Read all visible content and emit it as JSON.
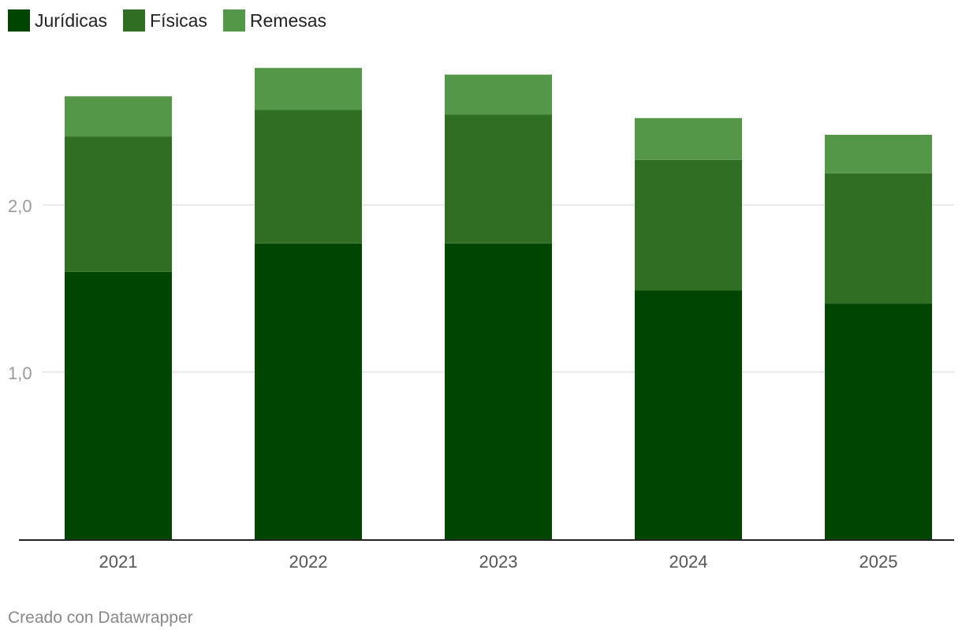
{
  "chart_data": {
    "type": "bar",
    "stacked": true,
    "categories": [
      "2021",
      "2022",
      "2023",
      "2024",
      "2025"
    ],
    "series": [
      {
        "name": "Jurídicas",
        "color": "#004600",
        "values": [
          1.6,
          1.77,
          1.77,
          1.49,
          1.41
        ]
      },
      {
        "name": "Físicas",
        "color": "#2f6e23",
        "values": [
          0.81,
          0.8,
          0.77,
          0.78,
          0.78
        ]
      },
      {
        "name": "Remesas",
        "color": "#559749",
        "values": [
          0.24,
          0.25,
          0.24,
          0.25,
          0.23
        ]
      }
    ],
    "y_ticks": [
      {
        "value": 1.0,
        "label": "1,0"
      },
      {
        "value": 2.0,
        "label": "2,0"
      }
    ],
    "ylim": [
      0,
      2.9
    ],
    "grid": true,
    "legend_position": "top-left",
    "title": "",
    "xlabel": "",
    "ylabel": ""
  },
  "credit": "Creado con Datawrapper"
}
